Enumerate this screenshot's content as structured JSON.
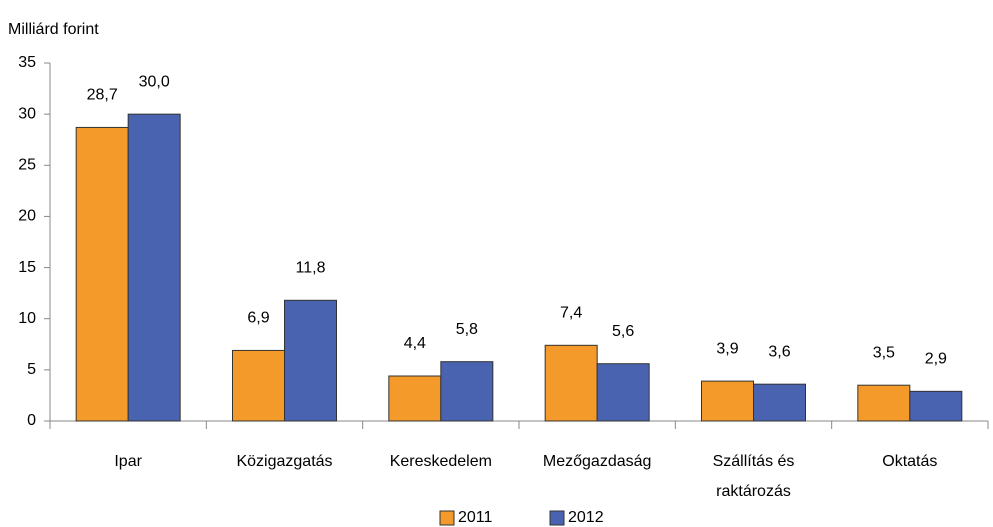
{
  "chart_data": {
    "type": "bar",
    "y_axis_label": "Milliárd forint",
    "categories": [
      "Ipar",
      "Közigazgatás",
      "Kereskedelem",
      "Mezőgazdaság",
      "Szállítás és raktározás",
      "Oktatás"
    ],
    "series": [
      {
        "name": "2011",
        "color": "#f39a2b",
        "values": [
          28.7,
          6.9,
          4.4,
          7.4,
          3.9,
          3.5
        ],
        "value_labels": [
          "28,7",
          "6,9",
          "4,4",
          "7,4",
          "3,9",
          "3,5"
        ]
      },
      {
        "name": "2012",
        "color": "#4a63b0",
        "values": [
          30.0,
          11.8,
          5.8,
          5.6,
          3.6,
          2.9
        ],
        "value_labels": [
          "30,0",
          "11,8",
          "5,8",
          "5,6",
          "3,6",
          "2,9"
        ]
      }
    ],
    "ylim": [
      0,
      35
    ],
    "yticks": [
      0,
      5,
      10,
      15,
      20,
      25,
      30,
      35
    ],
    "grid": false,
    "legend": "bottom"
  }
}
